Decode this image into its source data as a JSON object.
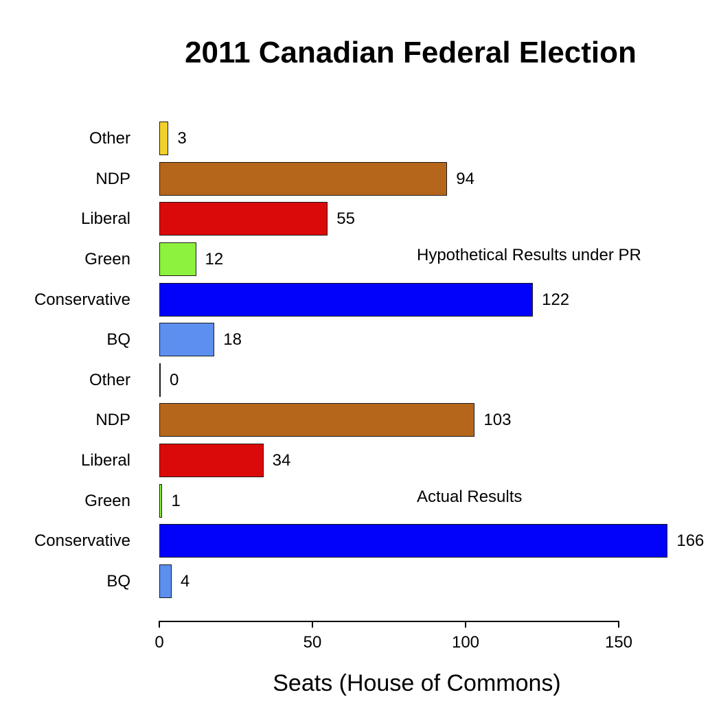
{
  "chart_data": {
    "type": "bar",
    "orientation": "horizontal",
    "title": "2011 Canadian Federal Election",
    "xlabel": "Seats (House of Commons)",
    "xlim": [
      0,
      172
    ],
    "xticks": [
      0,
      50,
      100,
      150
    ],
    "grid": false,
    "legend": "none",
    "bar_border_color": "#1a1a1a",
    "groups": [
      {
        "annotation": "Hypothetical Results under PR",
        "categories": [
          "Other",
          "NDP",
          "Liberal",
          "Green",
          "Conservative",
          "BQ"
        ],
        "values": [
          3,
          94,
          55,
          12,
          122,
          18
        ]
      },
      {
        "annotation": "Actual Results",
        "categories": [
          "Other",
          "NDP",
          "Liberal",
          "Green",
          "Conservative",
          "BQ"
        ],
        "values": [
          0,
          103,
          34,
          1,
          166,
          4
        ]
      }
    ],
    "party_colors": {
      "Other": "#f3d02c",
      "NDP": "#b5661b",
      "Liberal": "#db0a0a",
      "Green": "#8df23e",
      "Conservative": "#0202fa",
      "BQ": "#5c8ff0"
    }
  }
}
